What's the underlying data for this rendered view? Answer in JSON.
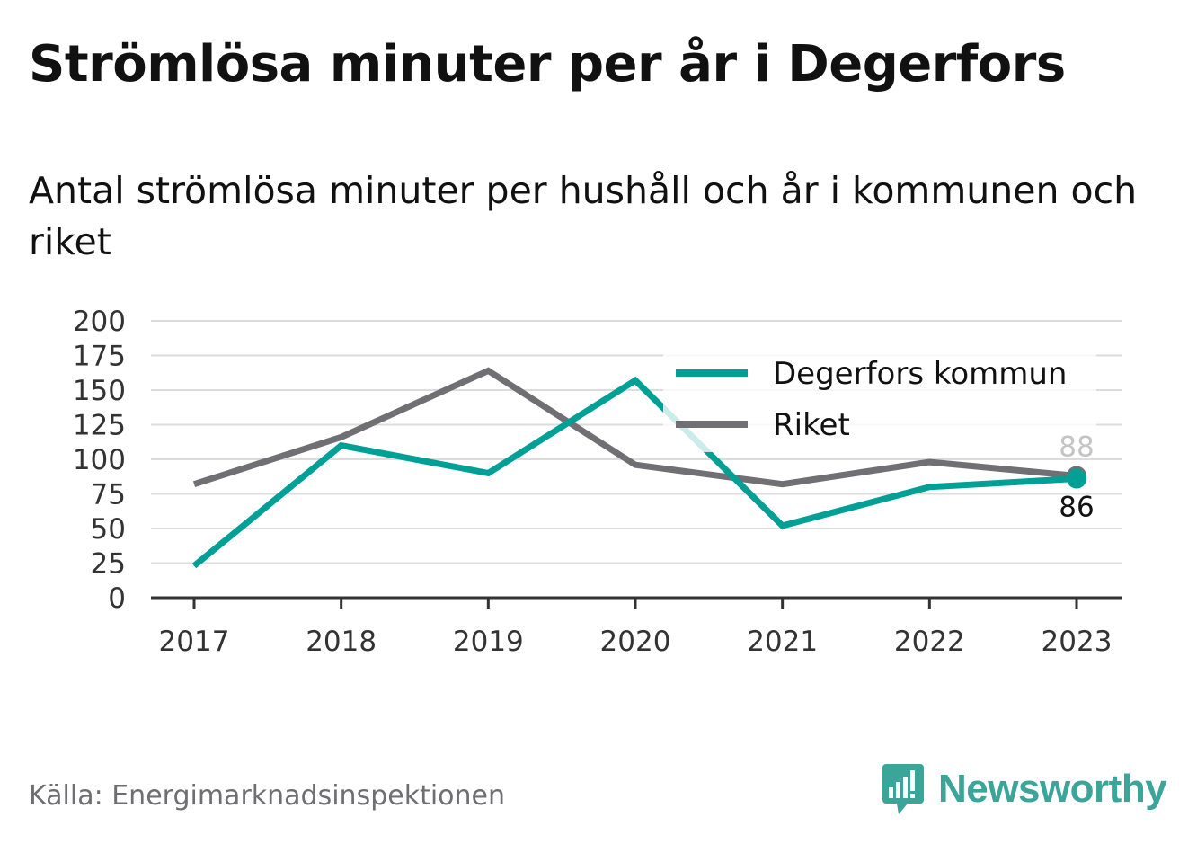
{
  "title": "Strömlösa minuter per år i Degerfors",
  "subtitle": "Antal strömlösa minuter per hushåll och år i kommunen och riket",
  "source": "Källa: Energimarknadsinspektionen",
  "brand": {
    "name": "Newsworthy",
    "icon": "newsworthy-logo-icon",
    "color": "#3aa598"
  },
  "chart_data": {
    "type": "line",
    "categories": [
      "2017",
      "2018",
      "2019",
      "2020",
      "2021",
      "2022",
      "2023"
    ],
    "ylim": [
      0,
      200
    ],
    "yticks": [
      "0",
      "25",
      "50",
      "75",
      "100",
      "125",
      "150",
      "175",
      "200"
    ],
    "grid": true,
    "legend_position": "top-right",
    "series": [
      {
        "name": "Degerfors kommun",
        "color": "#00a096",
        "values": [
          23,
          110,
          90,
          157,
          52,
          80,
          86
        ],
        "end_label": "86"
      },
      {
        "name": "Riket",
        "color": "#707074",
        "values": [
          82,
          116,
          164,
          96,
          82,
          98,
          88
        ],
        "end_label": "88"
      }
    ]
  }
}
